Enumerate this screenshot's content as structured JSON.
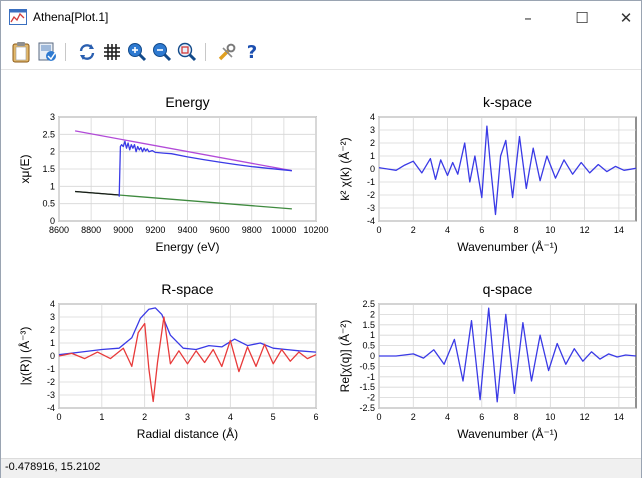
{
  "window": {
    "title": "Athena[Plot.1]",
    "minimize_glyph": "–",
    "maximize_glyph": "☐",
    "close_glyph": "✕"
  },
  "toolbar": {
    "icons": [
      "clipboard-icon",
      "save-icon",
      "refresh-icon",
      "grid-icon",
      "zoom-in-icon",
      "zoom-out-icon",
      "zoom-fit-icon",
      "tools-icon",
      "help-icon"
    ],
    "help_label": "?"
  },
  "status": {
    "coords": "-0.478916,  15.2102"
  },
  "colors": {
    "blue": "#3a3ae6",
    "red": "#e83a3a",
    "purple": "#b24ad8",
    "green": "#3f8a3f",
    "black": "#1a1a1a"
  },
  "chart_data": [
    {
      "type": "line",
      "title": "Energy",
      "xlabel": "Energy    (eV)",
      "ylabel": "xμ(E)",
      "xlim": [
        8600,
        10200
      ],
      "ylim": [
        0,
        3
      ],
      "xticks": [
        "8600",
        "8800",
        "9000",
        "9200",
        "9400",
        "9600",
        "9800",
        "10000",
        "10200"
      ],
      "yticks": [
        "0",
        "0.5",
        "1",
        "1.5",
        "2",
        "2.5",
        "3"
      ],
      "grid": true,
      "series": [
        {
          "color": "#b24ad8",
          "x": [
            8700,
            10050
          ],
          "y": [
            2.6,
            1.45
          ]
        },
        {
          "color": "#3f8a3f",
          "x": [
            8700,
            10050
          ],
          "y": [
            0.85,
            0.35
          ]
        },
        {
          "color": "#1a1a1a",
          "x": [
            8700,
            8975
          ],
          "y": [
            0.85,
            0.75
          ]
        },
        {
          "color": "#3a3ae6",
          "x": [
            8975,
            8978,
            8982,
            8990,
            9000,
            9010,
            9020,
            9030,
            9040,
            9050,
            9060,
            9070,
            9080,
            9090,
            9100,
            9110,
            9120,
            9130,
            9140,
            9150,
            9160,
            9180,
            9200,
            9250,
            9300,
            9400,
            9500,
            9600,
            9700,
            9800,
            9900,
            10050
          ],
          "y": [
            0.7,
            1.3,
            2.15,
            2.2,
            2.15,
            2.3,
            2.1,
            2.25,
            2.05,
            2.2,
            2.1,
            2.2,
            2.0,
            2.15,
            2.05,
            2.12,
            2.0,
            2.1,
            2.02,
            2.08,
            2.0,
            2.03,
            1.98,
            1.96,
            1.94,
            1.85,
            1.77,
            1.7,
            1.63,
            1.57,
            1.52,
            1.45
          ]
        }
      ]
    },
    {
      "type": "line",
      "title": "k-space",
      "xlabel": "Wavenumber   (Å⁻¹)",
      "ylabel": "k² χ(k)   (Å⁻²)",
      "xlim": [
        0,
        15
      ],
      "ylim": [
        -4,
        4
      ],
      "xticks": [
        "0",
        "2",
        "4",
        "6",
        "8",
        "10",
        "12",
        "14"
      ],
      "yticks": [
        "-4",
        "-3",
        "-2",
        "-1",
        "0",
        "1",
        "2",
        "3",
        "4"
      ],
      "grid": true,
      "series": [
        {
          "color": "#3a3ae6",
          "x": [
            0,
            0.5,
            1,
            1.5,
            2,
            2.5,
            3,
            3.3,
            3.6,
            4,
            4.3,
            4.6,
            5,
            5.3,
            5.6,
            6,
            6.3,
            6.5,
            6.8,
            7.1,
            7.4,
            7.8,
            8.2,
            8.6,
            9,
            9.4,
            9.8,
            10.3,
            10.8,
            11.3,
            11.8,
            12.3,
            12.8,
            13.3,
            13.8,
            14.3,
            15
          ],
          "y": [
            0.1,
            0.0,
            -0.1,
            0.3,
            0.6,
            -0.3,
            0.8,
            -0.8,
            0.7,
            -0.5,
            0.5,
            -0.4,
            2.0,
            -1.0,
            1.0,
            -2.2,
            3.3,
            0.3,
            -3.5,
            1.0,
            2.2,
            -2.2,
            2.5,
            -1.5,
            1.6,
            -0.9,
            1.0,
            -0.7,
            0.7,
            -0.4,
            0.5,
            -0.3,
            0.35,
            -0.2,
            0.2,
            -0.1,
            0.05
          ]
        }
      ]
    },
    {
      "type": "line",
      "title": "R-space",
      "xlabel": "Radial distance    (Å)",
      "ylabel": "|χ(R)|   (Å⁻³)",
      "xlim": [
        0,
        6
      ],
      "ylim": [
        -4,
        4
      ],
      "xticks": [
        "0",
        "1",
        "2",
        "3",
        "4",
        "5",
        "6"
      ],
      "yticks": [
        "-4",
        "-3",
        "-2",
        "-1",
        "0",
        "1",
        "2",
        "3",
        "4"
      ],
      "grid": true,
      "series": [
        {
          "color": "#3a3ae6",
          "x": [
            0,
            0.5,
            1.0,
            1.4,
            1.7,
            1.9,
            2.1,
            2.25,
            2.4,
            2.6,
            2.9,
            3.2,
            3.5,
            3.8,
            4.1,
            4.4,
            4.7,
            5.0,
            5.3,
            5.6,
            6.0
          ],
          "y": [
            0.1,
            0.3,
            0.5,
            0.6,
            1.4,
            2.9,
            3.6,
            3.7,
            3.2,
            1.6,
            0.6,
            0.5,
            0.8,
            0.7,
            1.3,
            0.8,
            1.0,
            0.6,
            0.5,
            0.4,
            0.3
          ]
        },
        {
          "color": "#e83a3a",
          "x": [
            0,
            0.3,
            0.6,
            0.9,
            1.2,
            1.5,
            1.7,
            1.85,
            2.0,
            2.1,
            2.2,
            2.3,
            2.45,
            2.6,
            2.8,
            3.0,
            3.2,
            3.4,
            3.6,
            3.8,
            4.0,
            4.2,
            4.4,
            4.6,
            4.8,
            5.0,
            5.2,
            5.4,
            5.6,
            5.8,
            6.0
          ],
          "y": [
            0,
            0.2,
            -0.2,
            0.3,
            -0.2,
            0.6,
            -0.8,
            1.8,
            2.5,
            -1.0,
            -3.5,
            -0.5,
            3.0,
            -0.6,
            0.4,
            -0.6,
            0.4,
            -0.5,
            0.5,
            -0.8,
            1.2,
            -1.2,
            0.7,
            -0.8,
            0.9,
            -0.6,
            0.5,
            -0.4,
            0.3,
            -0.2,
            0.1
          ]
        }
      ]
    },
    {
      "type": "line",
      "title": "q-space",
      "xlabel": "Wavenumber   (Å⁻¹)",
      "ylabel": "Re[χ(q)]   (Å⁻²)",
      "xlim": [
        0,
        15
      ],
      "ylim": [
        -2.5,
        2.5
      ],
      "xticks": [
        "0",
        "2",
        "4",
        "6",
        "8",
        "10",
        "12",
        "14"
      ],
      "yticks": [
        "-2.5",
        "-2",
        "-1.5",
        "-1",
        "-0.5",
        "0",
        "0.5",
        "1",
        "1.5",
        "2",
        "2.5"
      ],
      "grid": true,
      "series": [
        {
          "color": "#3a3ae6",
          "x": [
            0,
            1,
            2,
            2.6,
            3.2,
            3.8,
            4.4,
            4.9,
            5.4,
            5.9,
            6.4,
            6.9,
            7.4,
            7.9,
            8.4,
            8.9,
            9.4,
            9.9,
            10.4,
            10.9,
            11.4,
            11.9,
            12.4,
            12.9,
            13.4,
            13.9,
            14.4,
            15
          ],
          "y": [
            0,
            0.0,
            0.1,
            -0.1,
            0.3,
            -0.4,
            0.8,
            -1.2,
            1.7,
            -2.1,
            2.3,
            -2.2,
            2.0,
            -1.8,
            1.6,
            -1.2,
            1.0,
            -0.7,
            0.6,
            -0.4,
            0.35,
            -0.25,
            0.2,
            -0.15,
            0.1,
            -0.05,
            0.05,
            0.0
          ]
        }
      ]
    }
  ]
}
